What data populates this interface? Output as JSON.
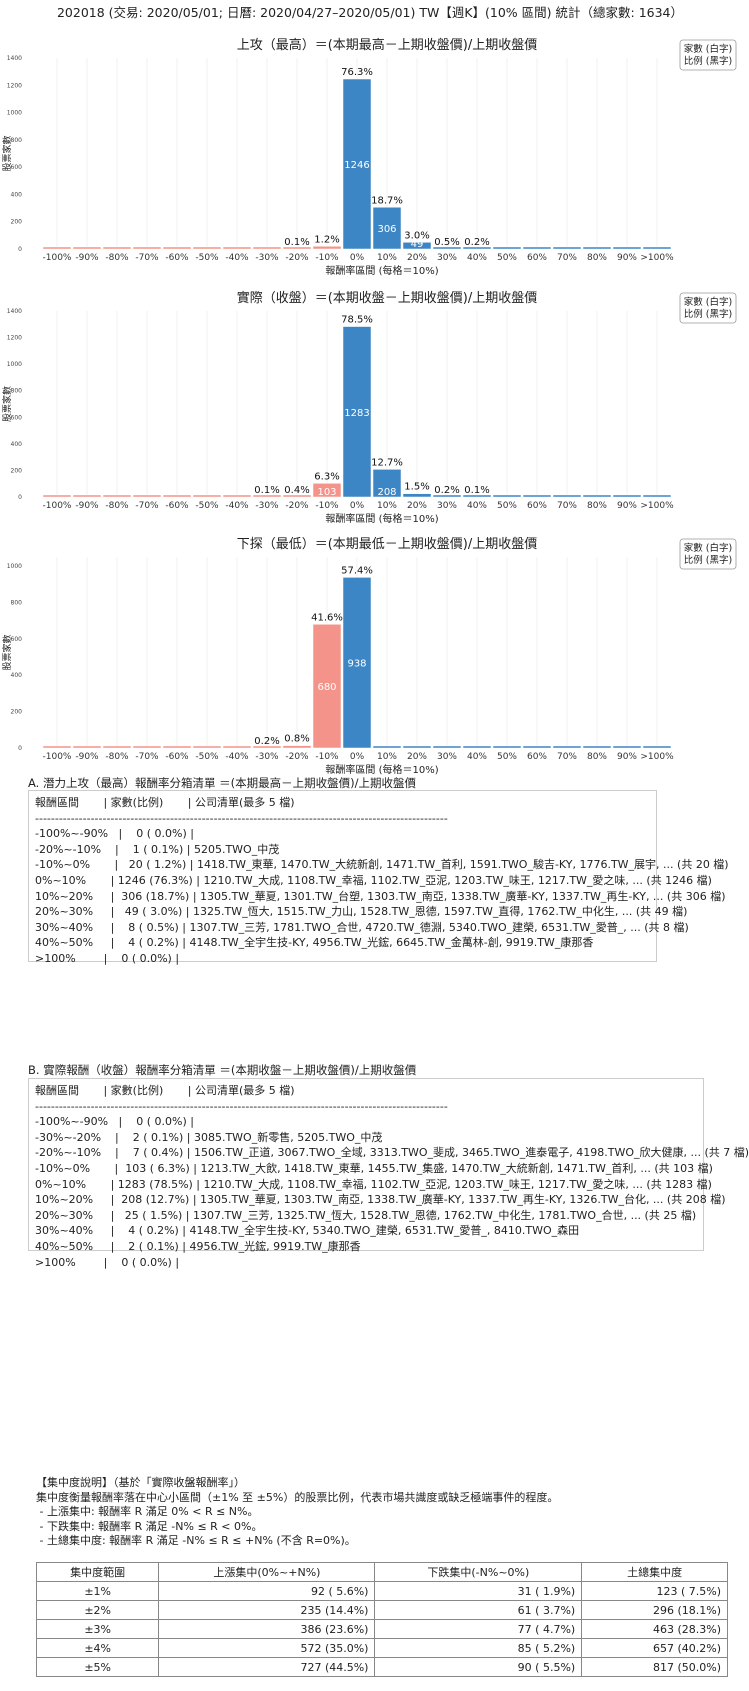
{
  "header": {
    "title": "202018 (交易: 2020/05/01; 日曆: 2020/04/27–2020/05/01) TW【週K】(10% 區間) 統計（總家數: 1634）"
  },
  "chart_data": [
    {
      "type": "bar",
      "title": "上攻（最高）＝(本期最高－上期收盤價)/上期收盤價",
      "xlabel": "報酬率區間 (每格＝10%)",
      "ylabel": "股票家數",
      "legend": [
        "家數 (白字)",
        "比例 (黑字)"
      ],
      "legend_position": "top-right",
      "ylim": [
        0,
        1400
      ],
      "yticks": [
        0,
        200,
        400,
        600,
        800,
        1000,
        1200,
        1400
      ],
      "categories": [
        "-100%",
        "-90%",
        "-80%",
        "-70%",
        "-60%",
        "-50%",
        "-40%",
        "-30%",
        "-20%",
        "-10%",
        "0%",
        "10%",
        "20%",
        "30%",
        "40%",
        "50%",
        "60%",
        "70%",
        "80%",
        "90%",
        ">100%"
      ],
      "values": [
        0,
        0,
        0,
        0,
        0,
        0,
        0,
        0,
        1,
        20,
        1246,
        306,
        49,
        8,
        4,
        0,
        0,
        0,
        0,
        0,
        0
      ],
      "percent_labels": [
        "",
        "",
        "",
        "",
        "",
        "",
        "",
        "",
        "0.1%",
        "1.2%",
        "76.3%",
        "18.7%",
        "3.0%",
        "0.5%",
        "0.2%",
        "",
        "",
        "",
        "",
        "",
        ""
      ]
    },
    {
      "type": "bar",
      "title": "實際（收盤）＝(本期收盤－上期收盤價)/上期收盤價",
      "xlabel": "報酬率區間 (每格＝10%)",
      "ylabel": "股票家數",
      "legend": [
        "家數 (白字)",
        "比例 (黑字)"
      ],
      "legend_position": "top-right",
      "ylim": [
        0,
        1400
      ],
      "yticks": [
        0,
        200,
        400,
        600,
        800,
        1000,
        1200,
        1400
      ],
      "categories": [
        "-100%",
        "-90%",
        "-80%",
        "-70%",
        "-60%",
        "-50%",
        "-40%",
        "-30%",
        "-20%",
        "-10%",
        "0%",
        "10%",
        "20%",
        "30%",
        "40%",
        "50%",
        "60%",
        "70%",
        "80%",
        "90%",
        ">100%"
      ],
      "values": [
        0,
        0,
        0,
        0,
        0,
        0,
        0,
        2,
        7,
        103,
        1283,
        208,
        25,
        4,
        2,
        0,
        0,
        0,
        0,
        0,
        0
      ],
      "percent_labels": [
        "",
        "",
        "",
        "",
        "",
        "",
        "",
        "0.1%",
        "0.4%",
        "6.3%",
        "78.5%",
        "12.7%",
        "1.5%",
        "0.2%",
        "0.1%",
        "",
        "",
        "",
        "",
        "",
        ""
      ]
    },
    {
      "type": "bar",
      "title": "下探（最低）＝(本期最低－上期收盤價)/上期收盤價",
      "xlabel": "報酬率區間 (每格＝10%)",
      "ylabel": "股票家數",
      "legend": [
        "家數 (白字)",
        "比例 (黑字)"
      ],
      "legend_position": "top-right",
      "ylim": [
        0,
        1050
      ],
      "yticks": [
        0,
        200,
        400,
        600,
        800,
        1000
      ],
      "categories": [
        "-100%",
        "-90%",
        "-80%",
        "-70%",
        "-60%",
        "-50%",
        "-40%",
        "-30%",
        "-20%",
        "-10%",
        "0%",
        "10%",
        "20%",
        "30%",
        "40%",
        "50%",
        "60%",
        "70%",
        "80%",
        "90%",
        ">100%"
      ],
      "values": [
        0,
        0,
        0,
        0,
        0,
        0,
        0,
        3,
        13,
        680,
        938,
        0,
        0,
        0,
        0,
        0,
        0,
        0,
        0,
        0,
        0
      ],
      "percent_labels": [
        "",
        "",
        "",
        "",
        "",
        "",
        "",
        "0.2%",
        "0.8%",
        "41.6%",
        "57.4%",
        "",
        "",
        "",
        "",
        "",
        "",
        "",
        "",
        "",
        ""
      ]
    }
  ],
  "colors": {
    "negative": "#f4938a",
    "positive": "#3d86c6",
    "grid": "#e6e6e6"
  },
  "sectionA": {
    "title": "A. 潛力上攻（最高）報酬率分箱清單 ＝(本期最高－上期收盤價)/上期收盤價",
    "lines": [
      "報酬區間       | 家數(比例)       | 公司清單(最多 5 檔)",
      "--------------------------------------------------------------------------------------------------------",
      "-100%~-90%   |    0 ( 0.0%) |",
      "-20%~-10%    |    1 ( 0.1%) | 5205.TWO_中茂",
      "-10%~0%       |   20 ( 1.2%) | 1418.TW_東華, 1470.TW_大統新創, 1471.TW_首利, 1591.TWO_駿吉-KY, 1776.TW_展宇, ... (共 20 檔)",
      "0%~10%       | 1246 (76.3%) | 1210.TW_大成, 1108.TW_幸福, 1102.TW_亞泥, 1203.TW_味王, 1217.TW_愛之味, ... (共 1246 檔)",
      "10%~20%     |  306 (18.7%) | 1305.TW_華夏, 1301.TW_台塑, 1303.TW_南亞, 1338.TW_廣華-KY, 1337.TW_再生-KY, ... (共 306 檔)",
      "20%~30%     |   49 ( 3.0%) | 1325.TW_恆大, 1515.TW_力山, 1528.TW_恩德, 1597.TW_直得, 1762.TW_中化生, ... (共 49 檔)",
      "30%~40%     |    8 ( 0.5%) | 1307.TW_三芳, 1781.TWO_合世, 4720.TW_德淵, 5340.TWO_建榮, 6531.TW_愛普_, ... (共 8 檔)",
      "40%~50%     |    4 ( 0.2%) | 4148.TW_全宇生技-KY, 4956.TW_光鋐, 6645.TW_金萬林-創, 9919.TW_康那香",
      ">100%        |    0 ( 0.0%) |"
    ]
  },
  "sectionB": {
    "title": "B. 實際報酬（收盤）報酬率分箱清單 ＝(本期收盤－上期收盤價)/上期收盤價",
    "lines": [
      "報酬區間       | 家數(比例)       | 公司清單(最多 5 檔)",
      "--------------------------------------------------------------------------------------------------------",
      "-100%~-90%   |    0 ( 0.0%) |",
      "-30%~-20%    |    2 ( 0.1%) | 3085.TWO_新零售, 5205.TWO_中茂",
      "-20%~-10%    |    7 ( 0.4%) | 1506.TW_正道, 3067.TWO_全域, 3313.TWO_斐成, 3465.TWO_進泰電子, 4198.TWO_欣大健康, ... (共 7 檔)",
      "-10%~0%       |  103 ( 6.3%) | 1213.TW_大飲, 1418.TW_東華, 1455.TW_集盛, 1470.TW_大統新創, 1471.TW_首利, ... (共 103 檔)",
      "0%~10%       | 1283 (78.5%) | 1210.TW_大成, 1108.TW_幸福, 1102.TW_亞泥, 1203.TW_味王, 1217.TW_愛之味, ... (共 1283 檔)",
      "10%~20%     |  208 (12.7%) | 1305.TW_華夏, 1303.TW_南亞, 1338.TW_廣華-KY, 1337.TW_再生-KY, 1326.TW_台化, ... (共 208 檔)",
      "20%~30%     |   25 ( 1.5%) | 1307.TW_三芳, 1325.TW_恆大, 1528.TW_恩德, 1762.TW_中化生, 1781.TWO_合世, ... (共 25 檔)",
      "30%~40%     |    4 ( 0.2%) | 4148.TW_全宇生技-KY, 5340.TWO_建榮, 6531.TW_愛普_, 8410.TWO_森田",
      "40%~50%     |    2 ( 0.1%) | 4956.TW_光鋐, 9919.TW_康那香",
      ">100%        |    0 ( 0.0%) |"
    ]
  },
  "notes": {
    "lines": [
      "【集中度說明】（基於「實際收盤報酬率」）",
      "集中度衡量報酬率落在中心小區間（±1% 至 ±5%）的股票比例，代表市場共識度或缺乏極端事件的程度。",
      " - 上漲集中: 報酬率 R 滿足 0% < R ≤ N%。",
      " - 下跌集中: 報酬率 R 滿足 -N% ≤ R < 0%。",
      " - 土總集中度: 報酬率 R 滿足 -N% ≤ R ≤ +N% (不含 R=0%)。"
    ]
  },
  "concentration_table": {
    "headers": [
      "集中度範圍",
      "上漲集中(0%~+N%)",
      "下跌集中(-N%~0%)",
      "土總集中度"
    ],
    "rows": [
      [
        "±1%",
        "92 ( 5.6%)",
        "31 ( 1.9%)",
        "123 ( 7.5%)"
      ],
      [
        "±2%",
        "235 (14.4%)",
        "61 ( 3.7%)",
        "296 (18.1%)"
      ],
      [
        "±3%",
        "386 (23.6%)",
        "77 ( 4.7%)",
        "463 (28.3%)"
      ],
      [
        "±4%",
        "572 (35.0%)",
        "85 ( 5.2%)",
        "657 (40.2%)"
      ],
      [
        "±5%",
        "727 (44.5%)",
        "90 ( 5.5%)",
        "817 (50.0%)"
      ]
    ]
  }
}
